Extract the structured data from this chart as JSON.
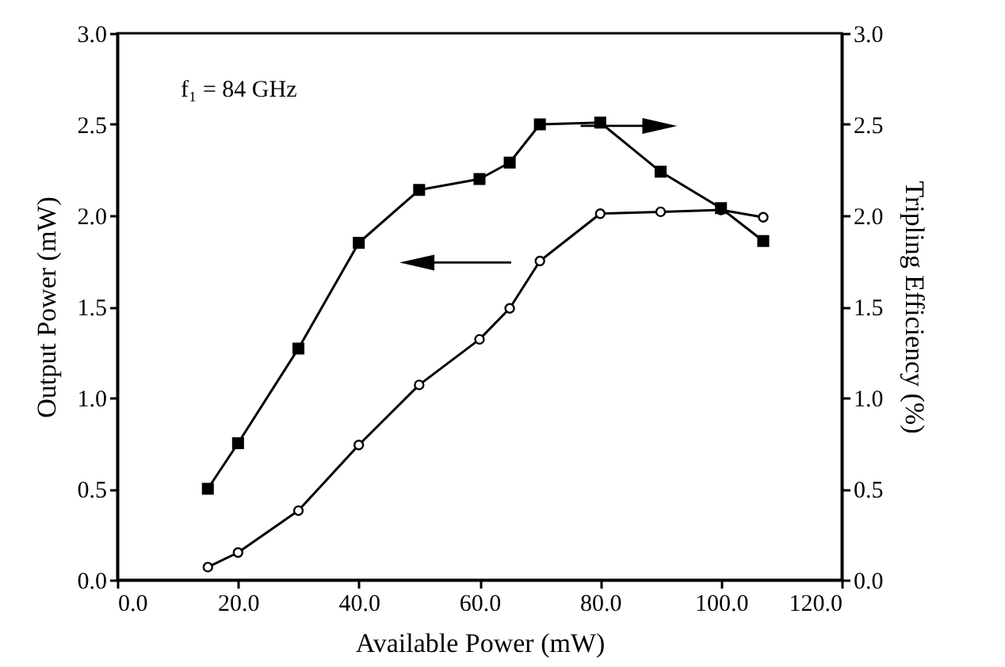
{
  "chart_data": {
    "type": "line",
    "xlabel": "Available Power (mW)",
    "ylabel": "Output Power (mW)",
    "y2label": "Tripling Efficiency (%)",
    "annotations": [
      "f₁ = 84 GHz"
    ],
    "xlim": [
      0,
      120
    ],
    "xticks": [
      {
        "value": 0,
        "label": "0.0"
      },
      {
        "value": 20,
        "label": "20.0"
      },
      {
        "value": 40,
        "label": "40.0"
      },
      {
        "value": 60,
        "label": "60.0"
      },
      {
        "value": 80,
        "label": "80.0"
      },
      {
        "value": 100,
        "label": "100.0"
      },
      {
        "value": 120,
        "label": "120.0"
      }
    ],
    "ylim": [
      0,
      3
    ],
    "yticks": [
      {
        "value": 0,
        "label": "0.0"
      },
      {
        "value": 0.5,
        "label": "0.5"
      },
      {
        "value": 1,
        "label": "1.0"
      },
      {
        "value": 1.5,
        "label": "1.5"
      },
      {
        "value": 2,
        "label": "2.0"
      },
      {
        "value": 2.5,
        "label": "2.5"
      },
      {
        "value": 3,
        "label": "3.0"
      }
    ],
    "y2lim": [
      0,
      3
    ],
    "y2ticks": [
      {
        "value": 0,
        "label": "0.0"
      },
      {
        "value": 0.5,
        "label": "0.5"
      },
      {
        "value": 1,
        "label": "1.0"
      },
      {
        "value": 1.5,
        "label": "1.5"
      },
      {
        "value": 2,
        "label": "2.0"
      },
      {
        "value": 2.5,
        "label": "2.5"
      },
      {
        "value": 3,
        "label": "3.0"
      }
    ],
    "x": [
      15,
      20,
      30,
      40,
      50,
      60,
      65,
      70,
      80,
      90,
      100,
      107
    ],
    "series": [
      {
        "color": "#000000",
        "marker": "circle",
        "values": [
          0.07,
          0.15,
          0.38,
          0.74,
          1.07,
          1.32,
          1.49,
          1.75,
          2.01,
          2.02,
          2.03,
          1.99
        ]
      },
      {
        "color": "#000000",
        "marker": "square",
        "axis": "y2",
        "values": [
          0.5,
          0.75,
          1.27,
          1.85,
          2.14,
          2.2,
          2.29,
          2.5,
          2.51,
          2.24,
          2.04,
          1.86
        ]
      }
    ],
    "grid": false
  }
}
